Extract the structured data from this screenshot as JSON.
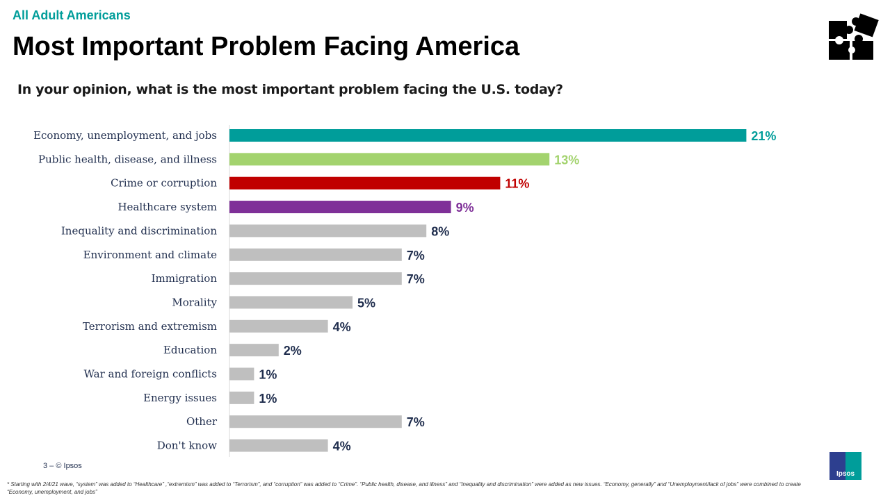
{
  "header": {
    "audience": "All Adult Americans",
    "title": "Most Important Problem Facing America",
    "question": "In your opinion, what is the most important problem facing the U.S. today?"
  },
  "footer": {
    "page": "3 –  © Ipsos",
    "footnote": "* Starting with 2/4/21 wave, “system” was added to “Healthcare” ,“extremism” was added to “Terrorism”, and “corruption” was added to “Crime”. “Public health, disease, and illness” and “Inequality and discrimination” were added as new issues. “Economy, generally” and “Unemployment/lack of jobs” were combined to create “Economy, unemployment, and jobs”",
    "logo": "Ipsos"
  },
  "icons": {
    "top_right": "puzzle-pieces-icon"
  },
  "chart_data": {
    "type": "bar",
    "orientation": "horizontal",
    "categories": [
      "Economy, unemployment, and jobs",
      "Public health, disease, and illness",
      "Crime or corruption",
      "Healthcare system",
      "Inequality and discrimination",
      "Environment and climate",
      "Immigration",
      "Morality",
      "Terrorism and extremism",
      "Education",
      "War and foreign conflicts",
      "Energy issues",
      "Other",
      "Don't know"
    ],
    "values": [
      21,
      13,
      11,
      9,
      8,
      7,
      7,
      5,
      4,
      2,
      1,
      1,
      7,
      4
    ],
    "labels": [
      "21%",
      "13%",
      "11%",
      "9%",
      "8%",
      "7%",
      "7%",
      "5%",
      "4%",
      "2%",
      "1%",
      "1%",
      "7%",
      "4%"
    ],
    "colors": [
      "#009d9a",
      "#a3d36e",
      "#c00000",
      "#7f3098",
      "#bfbfbf",
      "#bfbfbf",
      "#bfbfbf",
      "#bfbfbf",
      "#bfbfbf",
      "#bfbfbf",
      "#bfbfbf",
      "#bfbfbf",
      "#bfbfbf",
      "#bfbfbf"
    ],
    "label_colors": [
      "#009d9a",
      "#a3d36e",
      "#c00000",
      "#7f3098",
      "#1f2d4d",
      "#1f2d4d",
      "#1f2d4d",
      "#1f2d4d",
      "#1f2d4d",
      "#1f2d4d",
      "#1f2d4d",
      "#1f2d4d",
      "#1f2d4d",
      "#1f2d4d"
    ],
    "grid": false
  }
}
